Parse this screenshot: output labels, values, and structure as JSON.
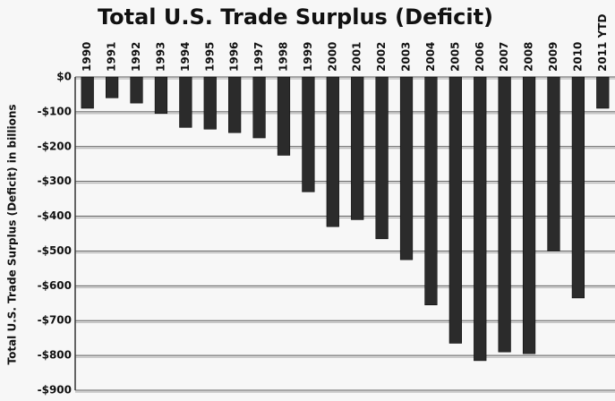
{
  "chart_data": {
    "type": "bar",
    "title": "Total U.S. Trade Surplus (Deficit)",
    "y_label": "Total U.S. Trade Surplus (Deficit) in billions",
    "categories": [
      "1990",
      "1991",
      "1992",
      "1993",
      "1994",
      "1995",
      "1996",
      "1997",
      "1998",
      "1999",
      "2000",
      "2001",
      "2002",
      "2003",
      "2004",
      "2005",
      "2006",
      "2007",
      "2008",
      "2009",
      "2010",
      "2011 YTD"
    ],
    "values": [
      -90,
      -60,
      -75,
      -105,
      -145,
      -150,
      -160,
      -175,
      -225,
      -330,
      -430,
      -410,
      -465,
      -525,
      -655,
      -765,
      -815,
      -790,
      -795,
      -500,
      -635,
      -90
    ],
    "color": "#2b2b2b",
    "ylim": [
      -900,
      0
    ],
    "yticks": [
      {
        "value": 0,
        "label": "$0"
      },
      {
        "value": -100,
        "label": "-$100"
      },
      {
        "value": -200,
        "label": "-$200"
      },
      {
        "value": -300,
        "label": "-$300"
      },
      {
        "value": -400,
        "label": "-$400"
      },
      {
        "value": -500,
        "label": "-$500"
      },
      {
        "value": -600,
        "label": "-$600"
      },
      {
        "value": -700,
        "label": "-$700"
      },
      {
        "value": -800,
        "label": "-$800"
      },
      {
        "value": -900,
        "label": "-$900"
      }
    ],
    "grid": true
  }
}
